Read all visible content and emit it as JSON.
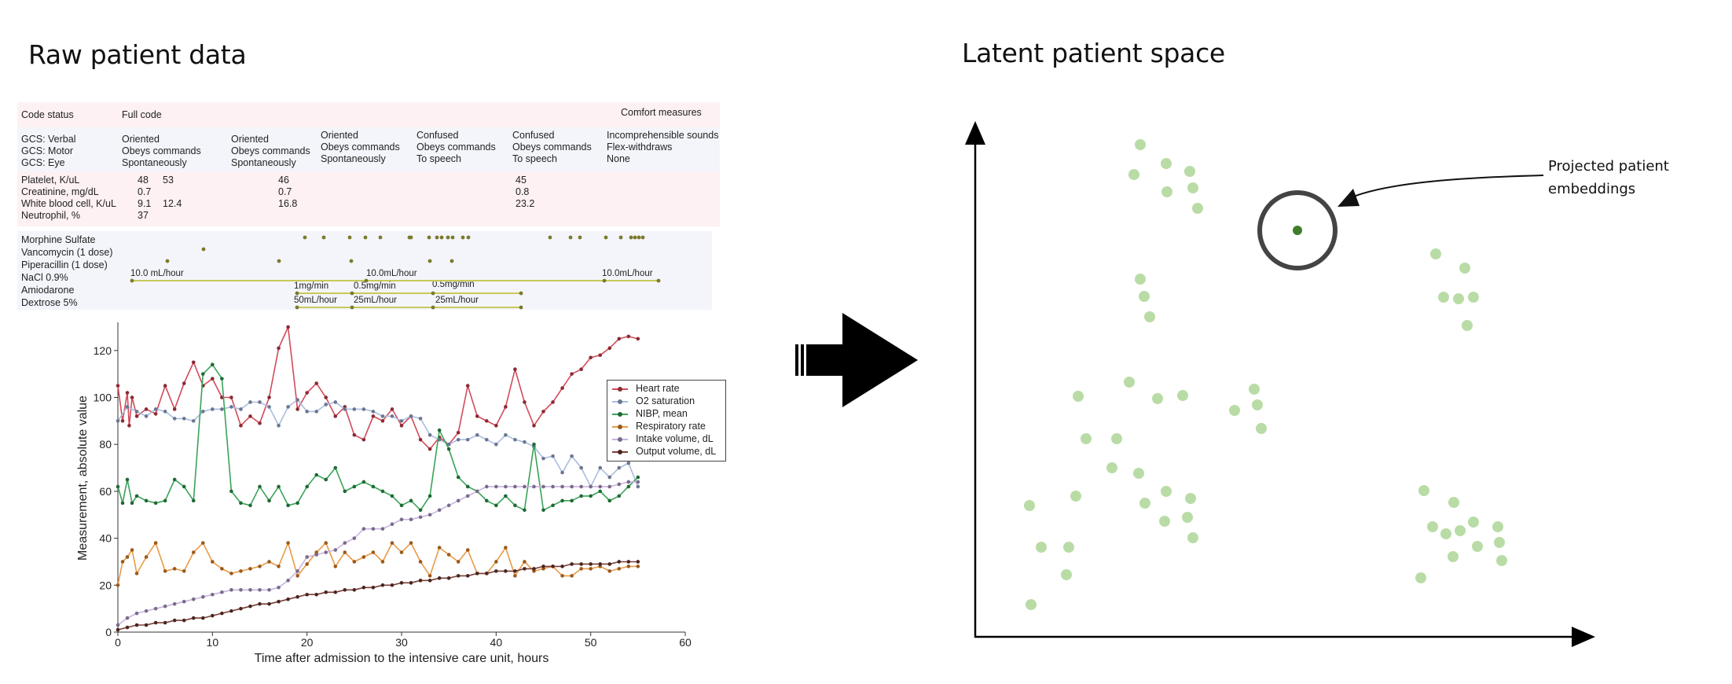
{
  "titles": {
    "raw": "Raw patient data",
    "latent": "Latent patient space"
  },
  "code_status": {
    "label": "Code status",
    "full": "Full code",
    "comfort": "Comfort measures"
  },
  "gcs": {
    "labels": [
      "GCS: Verbal",
      "GCS: Motor",
      "GCS: Eye"
    ],
    "columns": [
      [
        "Oriented",
        "Obeys commands",
        "Spontaneously"
      ],
      [
        "Oriented",
        "Obeys commands",
        "Spontaneously"
      ],
      [
        "Oriented",
        "Obeys commands",
        "Spontaneously"
      ],
      [
        "Confused",
        "Obeys commands",
        "To speech"
      ],
      [
        "Confused",
        "Obeys commands",
        "To speech"
      ],
      [
        "Incomprehensible sounds",
        "Flex-withdraws",
        "None"
      ]
    ]
  },
  "labs": {
    "labels": [
      "Platelet, K/uL",
      "Creatinine, mg/dL",
      "White blood cell, K/uL",
      "Neutrophil, %"
    ],
    "values": {
      "col_a": [
        "48",
        "0.7",
        "9.1",
        "37"
      ],
      "col_b": [
        "53",
        "",
        "12.4",
        ""
      ],
      "col_c": [
        "46",
        "0.7",
        "16.8",
        ""
      ],
      "col_d": [
        "45",
        "0.8",
        "23.2",
        ""
      ]
    }
  },
  "meds": {
    "labels": [
      "Morphine Sulfate",
      "Vancomycin (1 dose)",
      "Piperacillin (1 dose)",
      "NaCl 0.9%",
      "Amiodarone",
      "Dextrose 5%"
    ],
    "rates": {
      "nacl": [
        "10.0 mL/hour",
        "10.0mL/hour",
        "10.0mL/hour"
      ],
      "amio": [
        "1mg/min",
        "0.5mg/min",
        "0.5mg/min"
      ],
      "dextrose": [
        "50mL/hour",
        "25mL/hour",
        "25mL/hour"
      ]
    }
  },
  "legend": {
    "heart": "Heart rate",
    "o2": "O2 saturation",
    "nibp": "NIBP, mean",
    "resp": "Respiratory rate",
    "intake": "Intake volume, dL",
    "output": "Output volume, dL"
  },
  "colors": {
    "heart": "#d24b5a",
    "o2": "#a9bde0",
    "nibp": "#3aa35a",
    "resp": "#e89b48",
    "intake": "#c9b3e0",
    "output": "#7a4038",
    "cluster_point": "#b9dca6",
    "highlight_point": "#3f7d2a",
    "band_pink": "#fdf1f3",
    "band_blue": "#f4f5fb",
    "med_line": "#c9c85a"
  },
  "chart_data": {
    "type": "line",
    "xlabel": "Time after admission to the intensive care unit, hours",
    "ylabel": "Measurement, absolute value",
    "xlim": [
      0,
      60
    ],
    "ylim": [
      0,
      132
    ],
    "xticks": [
      0,
      10,
      20,
      30,
      40,
      50,
      60
    ],
    "yticks": [
      0,
      20,
      40,
      60,
      80,
      100,
      120
    ],
    "series": [
      {
        "name": "Heart rate",
        "x": [
          0,
          0.5,
          1,
          1.2,
          1.5,
          2,
          3,
          4,
          5,
          6,
          7,
          8,
          9,
          10,
          11,
          12,
          13,
          14,
          15,
          16,
          17,
          18,
          19,
          20,
          21,
          22,
          23,
          24,
          25,
          26,
          27,
          28,
          29,
          30,
          31,
          32,
          33,
          34,
          35,
          36,
          37,
          38,
          39,
          40,
          41,
          42,
          43,
          44,
          45,
          46,
          47,
          48,
          49,
          50,
          51,
          52,
          53,
          54,
          55
        ],
        "y": [
          105,
          90,
          102,
          88,
          100,
          92,
          95,
          93,
          105,
          95,
          106,
          115,
          105,
          108,
          100,
          100,
          88,
          92,
          89,
          100,
          121,
          130,
          95,
          102,
          106,
          100,
          92,
          96,
          84,
          82,
          92,
          90,
          95,
          88,
          92,
          82,
          78,
          83,
          80,
          85,
          105,
          92,
          90,
          88,
          96,
          112,
          98,
          88,
          94,
          98,
          104,
          110,
          112,
          117,
          118,
          121,
          125,
          126,
          125
        ]
      },
      {
        "name": "O2 saturation",
        "x": [
          0,
          1,
          2,
          3,
          4,
          5,
          6,
          7,
          8,
          9,
          10,
          11,
          12,
          13,
          14,
          15,
          16,
          17,
          18,
          19,
          20,
          21,
          22,
          23,
          24,
          25,
          26,
          27,
          28,
          29,
          30,
          31,
          32,
          33,
          34,
          35,
          36,
          37,
          38,
          39,
          40,
          41,
          42,
          43,
          44,
          45,
          46,
          47,
          48,
          49,
          50,
          51,
          52,
          53,
          54,
          55
        ],
        "y": [
          90,
          96,
          94,
          92,
          95,
          94,
          91,
          91,
          90,
          94,
          95,
          95,
          96,
          95,
          98,
          98,
          96,
          88,
          96,
          99,
          94,
          94,
          97,
          98,
          95,
          95,
          95,
          94,
          92,
          92,
          90,
          92,
          91,
          84,
          82,
          80,
          82,
          82,
          84,
          82,
          80,
          84,
          82,
          81,
          79,
          74,
          75,
          68,
          75,
          70,
          62,
          70,
          66,
          70,
          72,
          62
        ]
      },
      {
        "name": "NIBP, mean",
        "x": [
          0,
          0.5,
          1,
          1.5,
          2,
          3,
          4,
          5,
          6,
          7,
          8,
          9,
          10,
          11,
          12,
          13,
          14,
          15,
          16,
          17,
          18,
          19,
          20,
          21,
          22,
          23,
          24,
          25,
          26,
          27,
          28,
          29,
          30,
          31,
          32,
          33,
          34,
          35,
          36,
          37,
          38,
          39,
          40,
          41,
          42,
          43,
          44,
          45,
          46,
          47,
          48,
          49,
          50,
          51,
          52,
          53,
          54,
          55
        ],
        "y": [
          62,
          55,
          65,
          55,
          58,
          56,
          55,
          56,
          65,
          62,
          56,
          110,
          114,
          108,
          60,
          55,
          54,
          62,
          56,
          62,
          54,
          55,
          62,
          67,
          65,
          70,
          60,
          62,
          64,
          62,
          60,
          58,
          54,
          56,
          52,
          58,
          86,
          78,
          66,
          62,
          60,
          56,
          54,
          58,
          54,
          52,
          80,
          52,
          54,
          56,
          56,
          58,
          58,
          60,
          56,
          58,
          62,
          66
        ]
      },
      {
        "name": "Respiratory rate",
        "x": [
          0,
          0.5,
          1,
          1.5,
          2,
          3,
          4,
          5,
          6,
          7,
          8,
          9,
          10,
          11,
          12,
          13,
          14,
          15,
          16,
          17,
          18,
          19,
          20,
          21,
          22,
          23,
          24,
          25,
          26,
          27,
          28,
          29,
          30,
          31,
          32,
          33,
          34,
          35,
          36,
          37,
          38,
          39,
          40,
          41,
          42,
          43,
          44,
          45,
          46,
          47,
          48,
          49,
          50,
          51,
          52,
          53,
          54,
          55
        ],
        "y": [
          20,
          30,
          32,
          35,
          25,
          32,
          38,
          26,
          27,
          26,
          34,
          38,
          30,
          27,
          25,
          26,
          27,
          28,
          30,
          28,
          38,
          24,
          29,
          34,
          38,
          28,
          34,
          30,
          32,
          34,
          30,
          38,
          34,
          38,
          30,
          24,
          36,
          33,
          30,
          35,
          25,
          25,
          30,
          36,
          24,
          30,
          26,
          27,
          28,
          24,
          24,
          27,
          27,
          28,
          26,
          27,
          28,
          28
        ]
      },
      {
        "name": "Intake volume, dL",
        "x": [
          0,
          1,
          2,
          3,
          4,
          5,
          6,
          7,
          8,
          9,
          10,
          11,
          12,
          13,
          14,
          15,
          16,
          17,
          18,
          19,
          20,
          21,
          22,
          23,
          24,
          25,
          26,
          27,
          28,
          29,
          30,
          31,
          32,
          33,
          34,
          35,
          36,
          37,
          38,
          39,
          40,
          41,
          42,
          43,
          44,
          45,
          46,
          47,
          48,
          49,
          50,
          51,
          52,
          53,
          54,
          55
        ],
        "y": [
          3,
          6,
          8,
          9,
          10,
          11,
          12,
          13,
          14,
          15,
          16,
          17,
          18,
          18,
          18,
          18,
          18,
          19,
          22,
          26,
          32,
          33,
          34,
          35,
          38,
          40,
          44,
          44,
          44,
          46,
          48,
          48,
          49,
          50,
          52,
          54,
          56,
          58,
          60,
          62,
          62,
          62,
          62,
          62,
          62,
          62,
          62,
          62,
          62,
          62,
          62,
          62,
          62,
          63,
          64,
          64
        ]
      },
      {
        "name": "Output volume, dL",
        "x": [
          0,
          1,
          2,
          3,
          4,
          5,
          6,
          7,
          8,
          9,
          10,
          11,
          12,
          13,
          14,
          15,
          16,
          17,
          18,
          19,
          20,
          21,
          22,
          23,
          24,
          25,
          26,
          27,
          28,
          29,
          30,
          31,
          32,
          33,
          34,
          35,
          36,
          37,
          38,
          39,
          40,
          41,
          42,
          43,
          44,
          45,
          46,
          47,
          48,
          49,
          50,
          51,
          52,
          53,
          54,
          55
        ],
        "y": [
          1,
          2,
          3,
          3,
          4,
          4,
          5,
          5,
          6,
          6,
          7,
          8,
          9,
          10,
          11,
          12,
          12,
          13,
          14,
          15,
          16,
          16,
          17,
          17,
          18,
          18,
          19,
          19,
          20,
          20,
          21,
          21,
          22,
          22,
          23,
          23,
          24,
          24,
          25,
          25,
          26,
          26,
          26,
          27,
          27,
          28,
          28,
          28,
          29,
          29,
          29,
          29,
          29,
          30,
          30,
          30
        ]
      }
    ]
  },
  "latent": {
    "callout": [
      "Projected patient",
      "embeddings"
    ]
  }
}
